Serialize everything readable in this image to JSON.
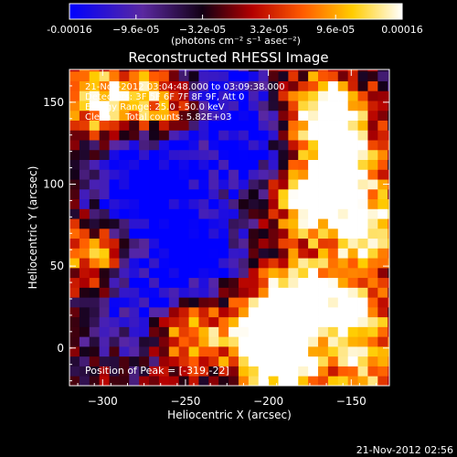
{
  "colorbar": {
    "ticks": [
      "-0.00016",
      "−9.6e-05",
      "−3.2e-05",
      "3.2e-05",
      "9.6e-05",
      "0.00016"
    ],
    "tick_values": [
      -0.00016,
      -9.6e-05,
      -3.2e-05,
      3.2e-05,
      9.6e-05,
      0.00016
    ],
    "range": [
      -0.00016,
      0.00016
    ],
    "unit_label": "(photons cm⁻² s⁻¹ asec⁻²)"
  },
  "colors": {
    "background": "#000000",
    "text": "#ffffff",
    "colormap_stops": [
      "#0000ff",
      "#5a28a0",
      "#120014",
      "#b40000",
      "#ff5a00",
      "#ffcc00",
      "#ffffff"
    ]
  },
  "chart_data": {
    "type": "heatmap",
    "title": "Reconstructed RHESSI Image",
    "xlabel": "Heliocentric X (arcsec)",
    "ylabel": "Heliocentric Y (arcsec)",
    "xlim": [
      -320,
      -127
    ],
    "ylim": [
      -23,
      170
    ],
    "xticks": [
      -300,
      -250,
      -200,
      -150
    ],
    "yticks": [
      0,
      50,
      100,
      150
    ],
    "grid": false,
    "info_lines": [
      "21-Nov-2012 03:04:48.000 to 03:09:38.000",
      "Detectors: 3F 5F 6F 7F 8F 9F, Att 0",
      "Energy Range: 25.0 - 50.0 keV",
      "Clean     Total counts: 5.82E+03"
    ],
    "peak_label": "Position of Peak = [-319,-22]",
    "peak_position": [
      -319,
      -22
    ],
    "hot_regions": [
      {
        "x": -165,
        "y": 145,
        "value": 0.00016
      },
      {
        "x": -155,
        "y": 112,
        "value": 0.00015
      },
      {
        "x": -175,
        "y": 90,
        "value": 0.00013
      },
      {
        "x": -140,
        "y": 70,
        "value": 0.00014
      },
      {
        "x": -182,
        "y": 32,
        "value": 0.00016
      },
      {
        "x": -205,
        "y": 10,
        "value": 0.00013
      },
      {
        "x": -190,
        "y": -10,
        "value": 0.00014
      },
      {
        "x": -150,
        "y": 20,
        "value": 0.00012
      },
      {
        "x": -300,
        "y": 150,
        "value": 0.00012
      },
      {
        "x": -265,
        "y": 150,
        "value": 0.0001
      },
      {
        "x": -305,
        "y": 60,
        "value": 0.00011
      },
      {
        "x": -250,
        "y": 10,
        "value": 0.00011
      },
      {
        "x": -140,
        "y": -15,
        "value": 9e-05
      }
    ],
    "cold_regions": [
      {
        "x": -245,
        "y": 60,
        "value": -0.00016
      },
      {
        "x": -270,
        "y": 110,
        "value": -0.00013
      },
      {
        "x": -275,
        "y": 25,
        "value": -0.00012
      },
      {
        "x": -215,
        "y": 120,
        "value": -0.00011
      },
      {
        "x": -230,
        "y": 160,
        "value": -0.0001
      },
      {
        "x": -290,
        "y": 85,
        "value": -9e-05
      }
    ]
  },
  "timestamp": "21-Nov-2012 02:56"
}
